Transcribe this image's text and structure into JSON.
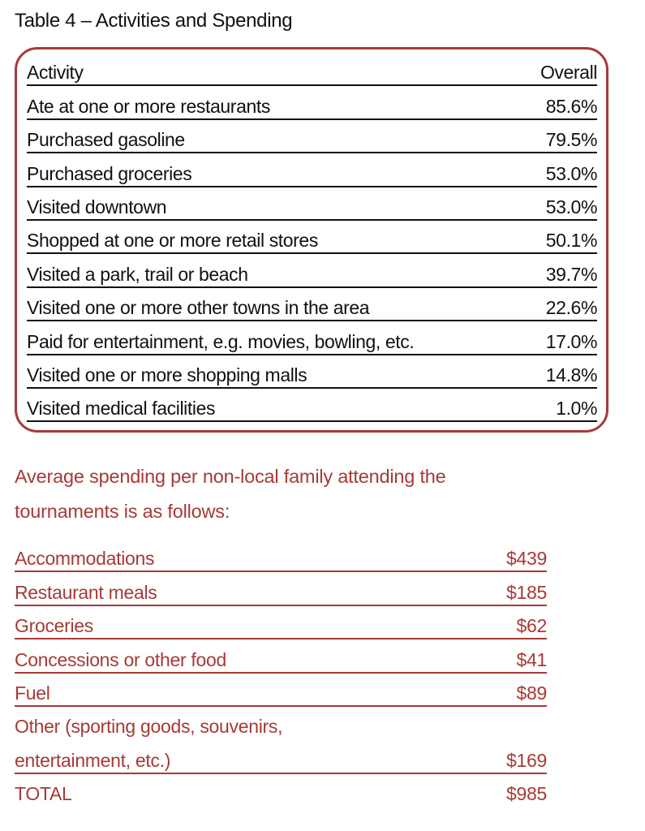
{
  "title": "Table 4 – Activities and Spending",
  "activities": {
    "header": {
      "label": "Activity",
      "value": "Overall"
    },
    "rows": [
      {
        "label": "Ate at one or more restaurants",
        "value": "85.6%"
      },
      {
        "label": "Purchased gasoline",
        "value": "79.5%"
      },
      {
        "label": "Purchased groceries",
        "value": "53.0%"
      },
      {
        "label": "Visited downtown",
        "value": "53.0%"
      },
      {
        "label": "Shopped at one or more retail stores",
        "value": "50.1%"
      },
      {
        "label": "Visited a park, trail or beach",
        "value": "39.7%"
      },
      {
        "label": "Visited one or more other towns in the area",
        "value": "22.6%"
      },
      {
        "label": "Paid for entertainment, e.g. movies, bowling, etc.",
        "value": "17.0%"
      },
      {
        "label": "Visited one or more shopping malls",
        "value": "14.8%"
      },
      {
        "label": "Visited medical facilities",
        "value": "1.0%"
      }
    ]
  },
  "intro_line1": "Average spending per non-local family attending the",
  "intro_line2": "tournaments is as follows:",
  "spending": {
    "rows": [
      {
        "label": "Accommodations",
        "value": "$439"
      },
      {
        "label": "Restaurant meals",
        "value": "$185"
      },
      {
        "label": "Groceries",
        "value": "$62"
      },
      {
        "label": "Concessions or other food",
        "value": "$41"
      },
      {
        "label": "Fuel",
        "value": "$89"
      }
    ],
    "other_line1": "Other (sporting goods, souvenirs,",
    "other_line2": "entertainment, etc.)",
    "other_value": "$169",
    "total_label": "TOTAL",
    "total_value": "$985"
  },
  "colors": {
    "accent": "#a63a36",
    "text": "#111111"
  }
}
